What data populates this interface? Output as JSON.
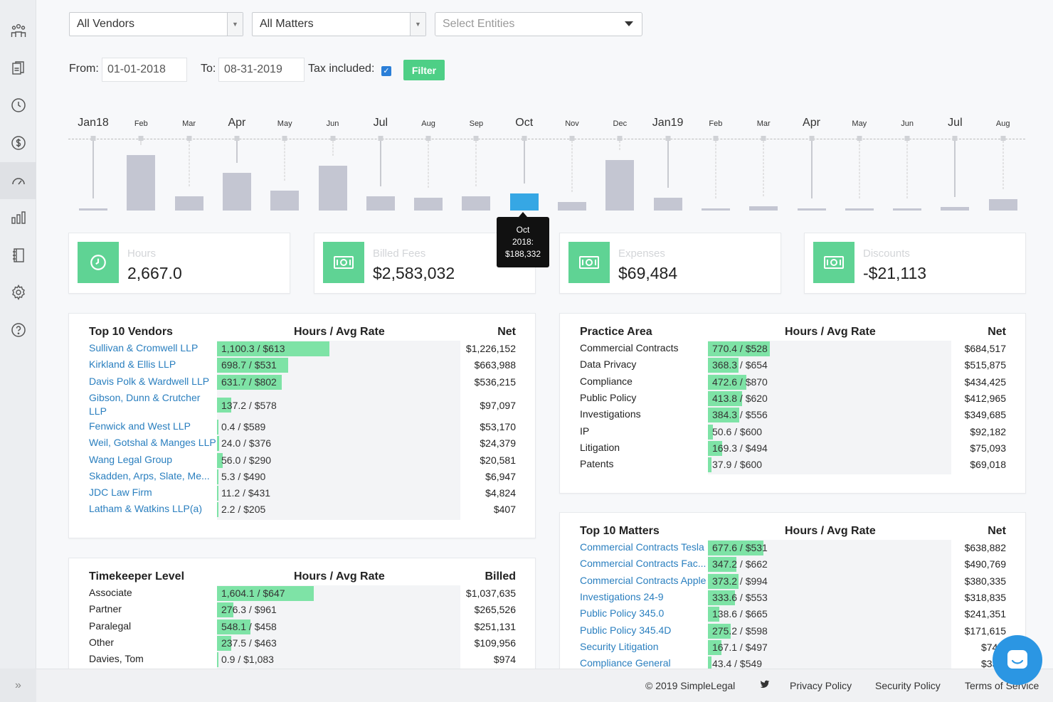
{
  "filters": {
    "vendors": "All Vendors",
    "matters": "All Matters",
    "entities_placeholder": "Select Entities",
    "from_label": "From:",
    "from_value": "01-01-2018",
    "to_label": "To:",
    "to_value": "08-31-2019",
    "tax_label": "Tax included:",
    "tax_checked": true,
    "filter_button": "Filter"
  },
  "chart_data": {
    "type": "bar",
    "categories": [
      "Jan18",
      "Feb",
      "Mar",
      "Apr",
      "May",
      "Jun",
      "Jul",
      "Aug",
      "Sep",
      "Oct",
      "Nov",
      "Dec",
      "Jan19",
      "Feb",
      "Mar",
      "Apr",
      "May",
      "Jun",
      "Jul",
      "Aug"
    ],
    "emphasized_labels": [
      true,
      false,
      false,
      true,
      false,
      false,
      true,
      false,
      false,
      true,
      false,
      false,
      true,
      false,
      false,
      true,
      false,
      false,
      true,
      false
    ],
    "values": [
      5000,
      620000,
      160000,
      420000,
      220000,
      500000,
      160000,
      140000,
      160000,
      188332,
      95000,
      560000,
      140000,
      5000,
      45000,
      5000,
      4000,
      4000,
      40000,
      130000
    ],
    "ylim": [
      0,
      650000
    ],
    "selected_index": 9,
    "tooltip": [
      "Oct",
      "2018:",
      "$188,332"
    ],
    "title": "",
    "xlabel": "",
    "ylabel": ""
  },
  "stats": [
    {
      "label": "Hours",
      "value": "2,667.0",
      "icon": "clock-icon"
    },
    {
      "label": "Billed Fees",
      "value": "$2,583,032",
      "icon": "cash-icon"
    },
    {
      "label": "Expenses",
      "value": "$69,484",
      "icon": "cash-icon"
    },
    {
      "label": "Discounts",
      "value": "-$21,113",
      "icon": "cash-icon"
    }
  ],
  "vendors": {
    "title": "Top 10 Vendors",
    "col_hours": "Hours / Avg Rate",
    "col_net": "Net",
    "rows": [
      {
        "name": "Sullivan & Cromwell LLP",
        "value": "1,100.3 / $613",
        "fill": 1.0,
        "net": "$1,226,152"
      },
      {
        "name": "Kirkland & Ellis LLP",
        "value": "698.7 / $531",
        "fill": 0.635,
        "net": "$663,988"
      },
      {
        "name": "Davis Polk & Wardwell LLP",
        "value": "631.7 / $802",
        "fill": 0.574,
        "net": "$536,215"
      },
      {
        "name": "Gibson, Dunn & Crutcher LLP",
        "value": "137.2 / $578",
        "fill": 0.125,
        "net": "$97,097"
      },
      {
        "name": "Fenwick and West LLP",
        "value": "0.4 / $589",
        "fill": 0.01,
        "net": "$53,170"
      },
      {
        "name": "Weil, Gotshal & Manges LLP",
        "value": "24.0 / $376",
        "fill": 0.022,
        "net": "$24,379"
      },
      {
        "name": "Wang Legal Group",
        "value": "56.0 / $290",
        "fill": 0.051,
        "net": "$20,581"
      },
      {
        "name": "Skadden, Arps, Slate, Me...",
        "value": "5.3 / $490",
        "fill": 0.012,
        "net": "$6,947"
      },
      {
        "name": "JDC Law Firm",
        "value": "11.2 / $431",
        "fill": 0.012,
        "net": "$4,824"
      },
      {
        "name": "Latham & Watkins LLP(a)",
        "value": "2.2 / $205",
        "fill": 0.012,
        "net": "$407"
      }
    ]
  },
  "timekeepers": {
    "title": "Timekeeper Level",
    "col_hours": "Hours / Avg Rate",
    "col_net": "Billed",
    "rows": [
      {
        "name": "Associate",
        "value": "1,604.1 / $647",
        "fill": 1.0,
        "net": "$1,037,635"
      },
      {
        "name": "Partner",
        "value": "276.3 / $961",
        "fill": 0.172,
        "net": "$265,526"
      },
      {
        "name": "Paralegal",
        "value": "548.1 / $458",
        "fill": 0.342,
        "net": "$251,131"
      },
      {
        "name": "Other",
        "value": "237.5 / $463",
        "fill": 0.148,
        "net": "$109,956"
      },
      {
        "name": "Davies, Tom",
        "value": "0.9 / $1,083",
        "fill": 0.0,
        "net": "$974"
      }
    ]
  },
  "practice": {
    "title": "Practice Area",
    "col_hours": "Hours / Avg Rate",
    "col_net": "Net",
    "rows": [
      {
        "name": "Commercial Contracts",
        "value": "770.4 / $528",
        "fill": 0.255,
        "net": "$684,517"
      },
      {
        "name": "Data Privacy",
        "value": "368.3 / $654",
        "fill": 0.125,
        "net": "$515,875"
      },
      {
        "name": "Compliance",
        "value": "472.6 / $870",
        "fill": 0.16,
        "net": "$434,425"
      },
      {
        "name": "Public Policy",
        "value": "413.8 / $620",
        "fill": 0.14,
        "net": "$412,965"
      },
      {
        "name": "Investigations",
        "value": "384.3 / $556",
        "fill": 0.13,
        "net": "$349,685"
      },
      {
        "name": "IP",
        "value": "50.6 / $600",
        "fill": 0.02,
        "net": "$92,182"
      },
      {
        "name": "Litigation",
        "value": "169.3 / $494",
        "fill": 0.058,
        "net": "$75,093"
      },
      {
        "name": "Patents",
        "value": "37.9 / $600",
        "fill": 0.015,
        "net": "$69,018"
      }
    ]
  },
  "matters": {
    "title": "Top 10 Matters",
    "col_hours": "Hours / Avg Rate",
    "col_net": "Net",
    "rows": [
      {
        "name": "Commercial Contracts Tesla",
        "value": "677.6 / $531",
        "fill": 0.23,
        "net": "$638,882"
      },
      {
        "name": "Commercial Contracts Fac...",
        "value": "347.2 / $662",
        "fill": 0.118,
        "net": "$490,769"
      },
      {
        "name": "Commercial Contracts Apple",
        "value": "373.2 / $994",
        "fill": 0.127,
        "net": "$380,335"
      },
      {
        "name": "Investigations 24-9",
        "value": "333.6 / $553",
        "fill": 0.113,
        "net": "$318,835"
      },
      {
        "name": "Public Policy 345.0",
        "value": "138.6 / $665",
        "fill": 0.047,
        "net": "$241,351"
      },
      {
        "name": "Public Policy 345.4D",
        "value": "275.2 / $598",
        "fill": 0.093,
        "net": "$171,615"
      },
      {
        "name": "Security Litigation",
        "value": "167.1 / $497",
        "fill": 0.057,
        "net": "$74,6"
      },
      {
        "name": "Compliance General",
        "value": "43.4 / $549",
        "fill": 0.015,
        "net": "$33,5"
      }
    ]
  },
  "footer": {
    "copyright": "© 2019 SimpleLegal",
    "privacy": "Privacy Policy",
    "security": "Security Policy",
    "terms": "Terms of Service"
  },
  "sidebar_icons": [
    "team-icon",
    "documents-icon",
    "clock-icon",
    "dollar-icon",
    "dashboard-icon",
    "bar-chart-icon",
    "notebook-icon",
    "settings-icon",
    "help-icon"
  ],
  "colors": {
    "accent_green": "#5fd394",
    "bar_gray": "#c4c6d2",
    "bar_selected": "#36a7e4",
    "link_blue": "#2a7fbf"
  }
}
